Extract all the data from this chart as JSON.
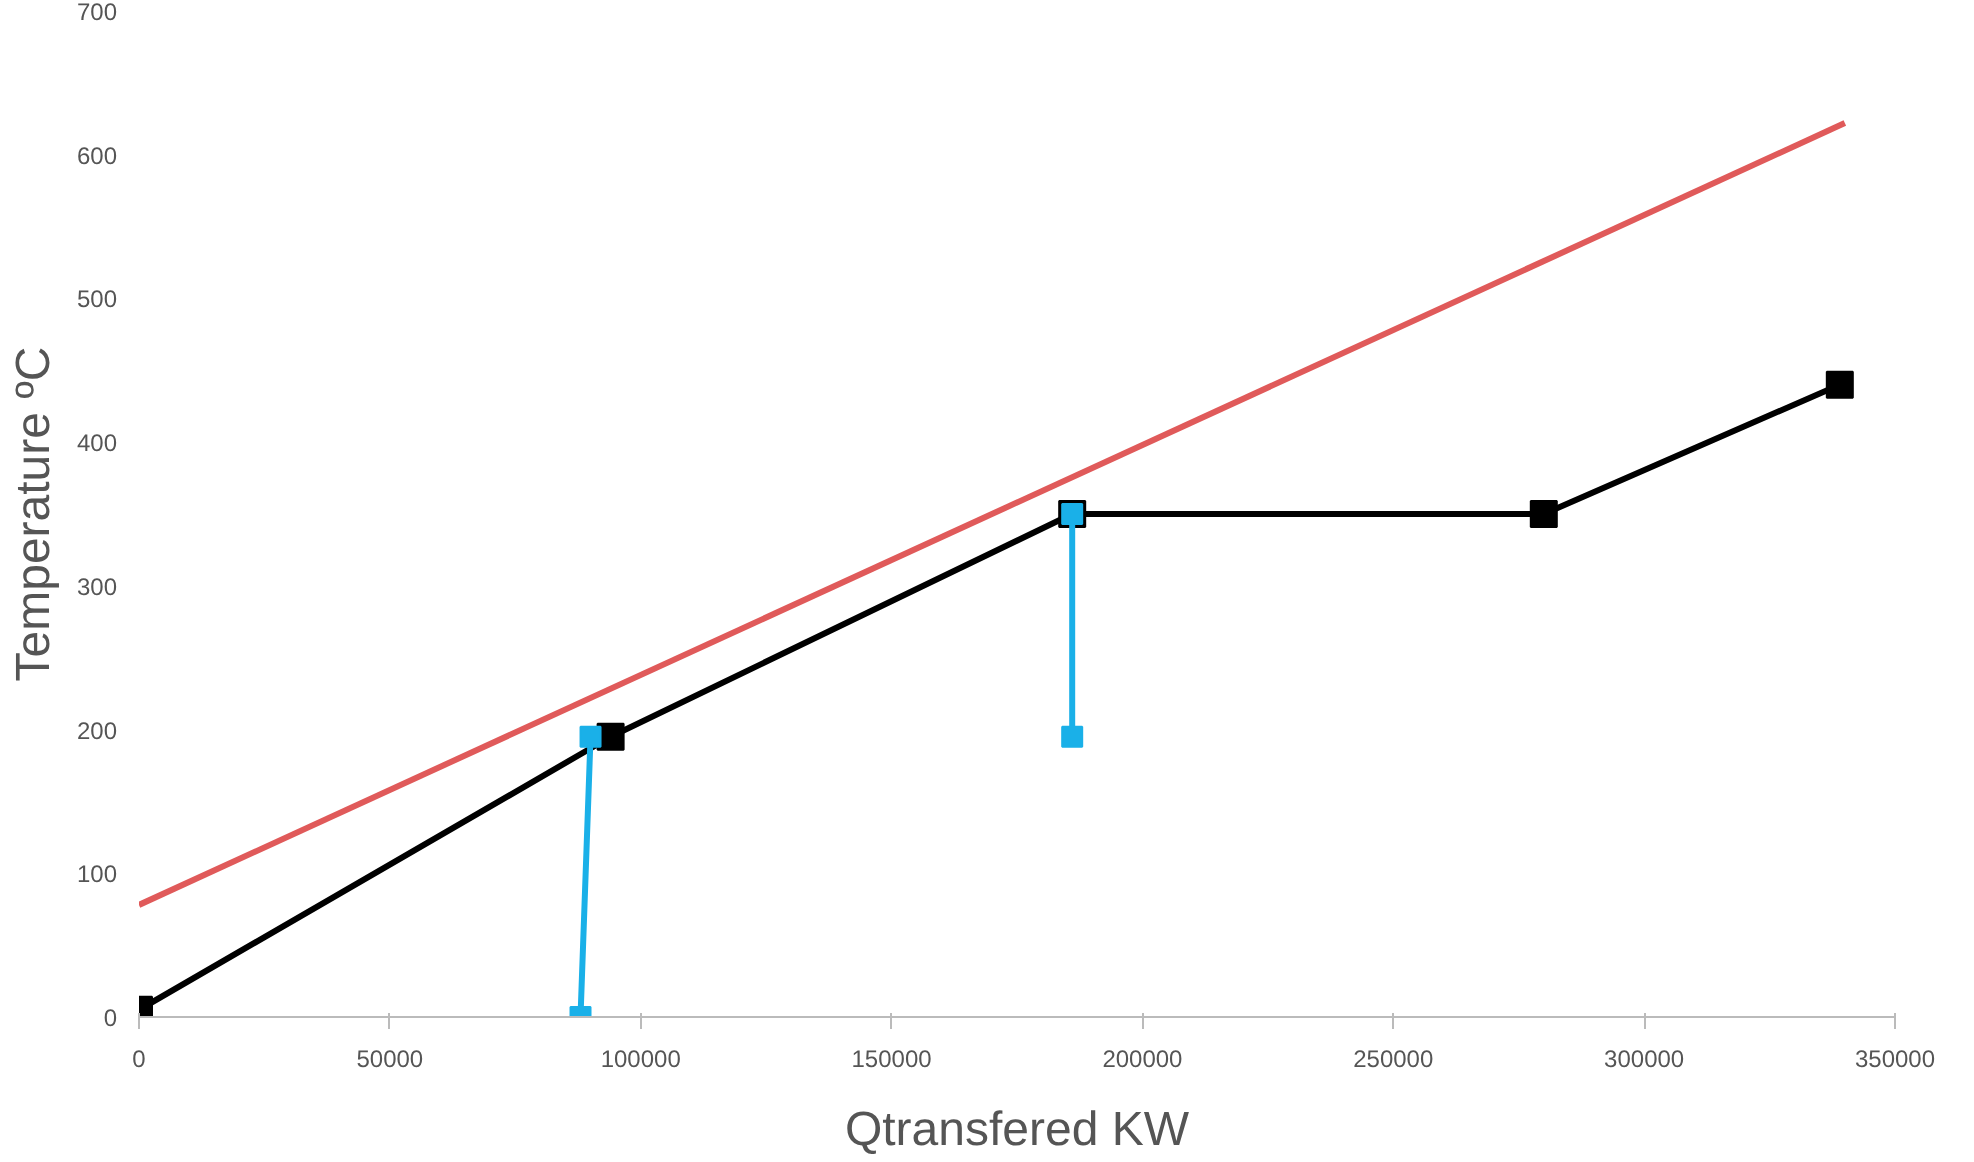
{
  "chart_data": {
    "type": "line",
    "xlabel": "Qtransfered KW",
    "ylabel": "Temperature ºC",
    "xlim": [
      0,
      350000
    ],
    "xticks": [
      0,
      50000,
      100000,
      150000,
      200000,
      250000,
      300000,
      350000
    ],
    "ylim": [
      0,
      700
    ],
    "yticks": [
      0,
      100,
      200,
      300,
      400,
      500,
      600,
      700
    ],
    "grid": false,
    "series": [
      {
        "color": "#e05a5a",
        "x": [
          0,
          340000
        ],
        "values": [
          78,
          622
        ],
        "marker": "none"
      },
      {
        "color": "#000000",
        "x": [
          0,
          94000,
          186000,
          280000,
          339000
        ],
        "values": [
          5,
          195,
          350,
          350,
          440
        ],
        "marker": "square"
      },
      {
        "color": "#1ab0e8",
        "x": [
          88000,
          90000,
          138000,
          186000,
          186000
        ],
        "values": [
          0,
          195,
          null,
          350,
          195
        ],
        "marker": "square"
      }
    ]
  }
}
